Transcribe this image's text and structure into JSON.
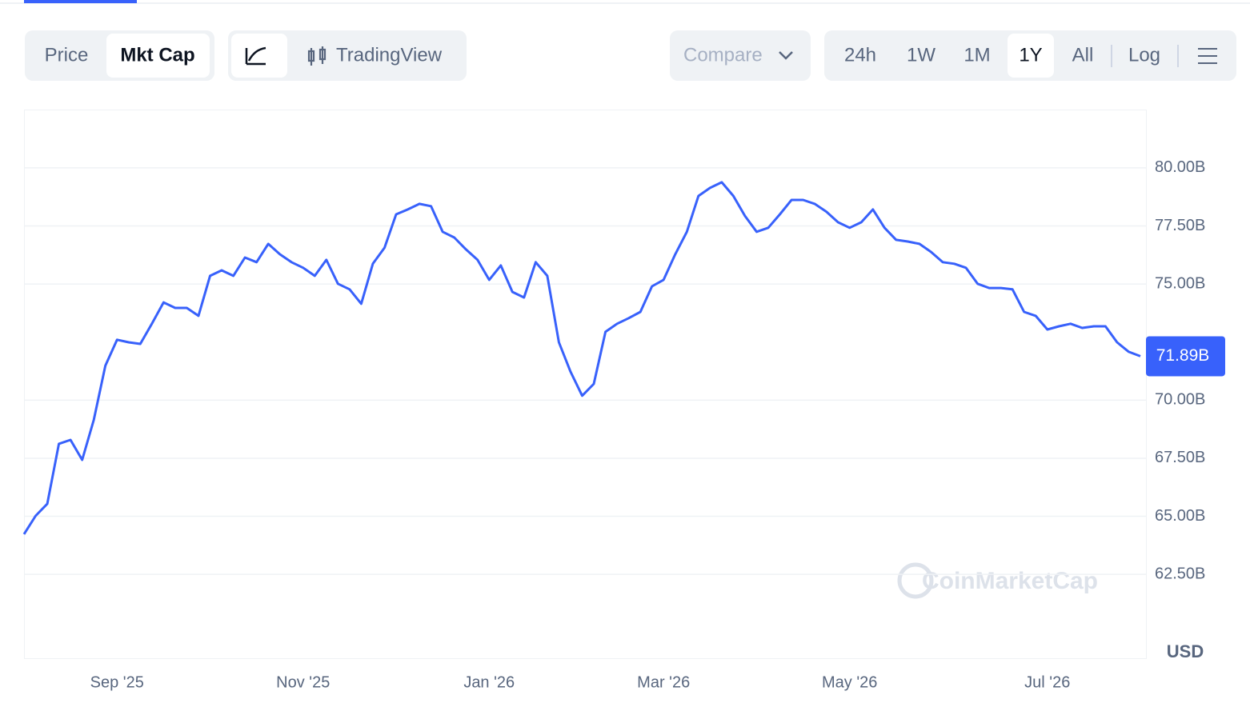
{
  "toolbar": {
    "view": [
      "Price",
      "Mkt Cap"
    ],
    "chart_style": "TradingView",
    "compare": "Compare",
    "ranges": [
      "24h",
      "1W",
      "1M",
      "1Y",
      "All"
    ],
    "scale": "Log"
  },
  "chart_data": {
    "type": "line",
    "unit": "USD",
    "watermark": "CoinMarketCap",
    "categories": [
      null,
      null,
      null,
      null,
      null,
      null,
      null,
      null,
      "Sep '25",
      null,
      null,
      null,
      null,
      null,
      null,
      null,
      null,
      null,
      null,
      null,
      null,
      null,
      null,
      null,
      "Nov '25",
      null,
      null,
      null,
      null,
      null,
      null,
      null,
      null,
      null,
      null,
      null,
      null,
      null,
      null,
      null,
      "Jan '26",
      null,
      null,
      null,
      null,
      null,
      null,
      null,
      null,
      null,
      null,
      null,
      null,
      null,
      null,
      "Mar '26",
      null,
      null,
      null,
      null,
      null,
      null,
      null,
      null,
      null,
      null,
      null,
      null,
      null,
      null,
      null,
      "May '26",
      null,
      null,
      null,
      null,
      null,
      null,
      null,
      null,
      null,
      null,
      null,
      null,
      null,
      null,
      null,
      null,
      "Jul '26",
      null,
      null,
      null,
      null,
      null,
      null,
      null,
      null
    ],
    "series": [
      {
        "name": "Mkt Cap",
        "color": "#3861fb",
        "values": [
          64.23,
          65.02,
          65.54,
          68.12,
          68.29,
          67.43,
          69.15,
          71.49,
          72.6,
          72.49,
          72.42,
          73.29,
          74.21,
          73.97,
          73.97,
          73.63,
          75.35,
          75.59,
          75.35,
          76.14,
          75.94,
          76.73,
          76.28,
          75.94,
          75.7,
          75.35,
          76.04,
          75.01,
          74.77,
          74.15,
          75.87,
          76.56,
          78.0,
          78.21,
          78.45,
          78.35,
          77.25,
          77.0,
          76.49,
          76.04,
          75.18,
          75.8,
          74.66,
          74.42,
          75.94,
          75.35,
          72.49,
          71.22,
          70.19,
          70.7,
          72.94,
          73.29,
          73.53,
          73.8,
          74.9,
          75.18,
          76.28,
          77.25,
          78.79,
          79.14,
          79.38,
          78.79,
          77.93,
          77.25,
          77.42,
          78.0,
          78.62,
          78.62,
          78.45,
          78.11,
          77.66,
          77.42,
          77.66,
          78.21,
          77.42,
          76.9,
          76.83,
          76.73,
          76.38,
          75.94,
          75.87,
          75.7,
          75.01,
          74.83,
          74.83,
          74.77,
          73.8,
          73.63,
          73.04,
          73.18,
          73.29,
          73.11,
          73.18,
          73.18,
          72.49,
          72.08,
          71.89
        ]
      }
    ],
    "current": {
      "value": 71.89,
      "label": "71.89B"
    },
    "ylim": [
      58.89,
      82.51
    ],
    "yticks": [
      {
        "value": 62.5,
        "label": "62.50B"
      },
      {
        "value": 65,
        "label": "65.00B"
      },
      {
        "value": 67.5,
        "label": "67.50B"
      },
      {
        "value": 70,
        "label": "70.00B"
      },
      {
        "value": 75,
        "label": "75.00B"
      },
      {
        "value": 77.5,
        "label": "77.50B"
      },
      {
        "value": 80,
        "label": "80.00B"
      }
    ],
    "grid": true
  }
}
